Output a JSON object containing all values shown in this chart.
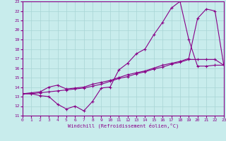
{
  "xlabel": "Windchill (Refroidissement éolien,°C)",
  "background_color": "#c8ecec",
  "grid_color": "#a8d4d4",
  "line_color": "#880088",
  "xlim": [
    0,
    23
  ],
  "ylim": [
    11,
    23
  ],
  "xticks": [
    0,
    1,
    2,
    3,
    4,
    5,
    6,
    7,
    8,
    9,
    10,
    11,
    12,
    13,
    14,
    15,
    16,
    17,
    18,
    19,
    20,
    21,
    22,
    23
  ],
  "yticks": [
    11,
    12,
    13,
    14,
    15,
    16,
    17,
    18,
    19,
    20,
    21,
    22,
    23
  ],
  "line1_x": [
    0,
    1,
    2,
    3,
    4,
    5,
    6,
    7,
    8,
    9,
    10,
    11,
    12,
    13,
    14,
    15,
    16,
    17,
    18,
    19,
    20,
    21,
    22,
    23
  ],
  "line1_y": [
    13.3,
    13.3,
    13.1,
    13.0,
    12.2,
    11.7,
    12.0,
    11.5,
    12.5,
    13.9,
    14.0,
    15.8,
    16.5,
    17.5,
    18.0,
    19.5,
    20.8,
    22.3,
    23.0,
    19.0,
    16.2,
    16.2,
    16.3,
    16.3
  ],
  "line2_x": [
    0,
    1,
    2,
    3,
    4,
    5,
    6,
    7,
    8,
    9,
    10,
    11,
    12,
    13,
    14,
    15,
    16,
    17,
    18,
    19,
    20,
    21,
    22,
    23
  ],
  "line2_y": [
    13.3,
    13.4,
    13.5,
    14.0,
    14.2,
    13.8,
    13.9,
    14.0,
    14.3,
    14.5,
    14.7,
    15.0,
    15.3,
    15.5,
    15.7,
    16.0,
    16.3,
    16.5,
    16.7,
    17.0,
    21.2,
    22.2,
    22.0,
    16.3
  ],
  "line3_x": [
    0,
    1,
    2,
    3,
    4,
    5,
    6,
    7,
    8,
    9,
    10,
    11,
    12,
    13,
    14,
    15,
    16,
    17,
    18,
    19,
    20,
    21,
    22,
    23
  ],
  "line3_y": [
    13.3,
    13.3,
    13.4,
    13.5,
    13.6,
    13.7,
    13.8,
    13.9,
    14.1,
    14.3,
    14.6,
    14.9,
    15.1,
    15.4,
    15.6,
    15.9,
    16.1,
    16.4,
    16.6,
    16.9,
    16.9,
    16.9,
    16.9,
    16.3
  ]
}
